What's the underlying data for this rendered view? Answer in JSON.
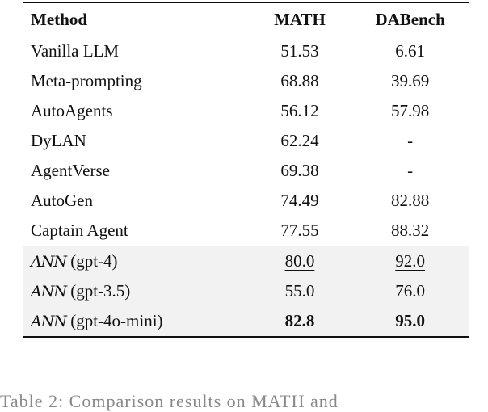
{
  "table": {
    "headers": [
      "Method",
      "MATH",
      "DABench"
    ],
    "rows": [
      {
        "method": "Vanilla LLM",
        "math": "51.53",
        "dabench": "6.61"
      },
      {
        "method": "Meta-prompting",
        "math": "68.88",
        "dabench": "39.69"
      },
      {
        "method": "AutoAgents",
        "math": "56.12",
        "dabench": "57.98"
      },
      {
        "method": "DyLAN",
        "math": "62.24",
        "dabench": "-"
      },
      {
        "method": "AgentVerse",
        "math": "69.38",
        "dabench": "-"
      },
      {
        "method": "AutoGen",
        "math": "74.49",
        "dabench": "82.88"
      },
      {
        "method": "Captain Agent",
        "math": "77.55",
        "dabench": "88.32"
      }
    ],
    "ann_rows": [
      {
        "prefix": "ANN",
        "variant": "(gpt-4)",
        "math": "80.0",
        "dabench": "92.0",
        "style": "underline"
      },
      {
        "prefix": "ANN",
        "variant": "(gpt-3.5)",
        "math": "55.0",
        "dabench": "76.0",
        "style": "normal"
      },
      {
        "prefix": "ANN",
        "variant": "(gpt-4o-mini)",
        "math": "82.8",
        "dabench": "95.0",
        "style": "bold"
      }
    ],
    "shade_color": "#f2f2f2"
  },
  "caption": "Table 2: Comparison results on MATH and"
}
